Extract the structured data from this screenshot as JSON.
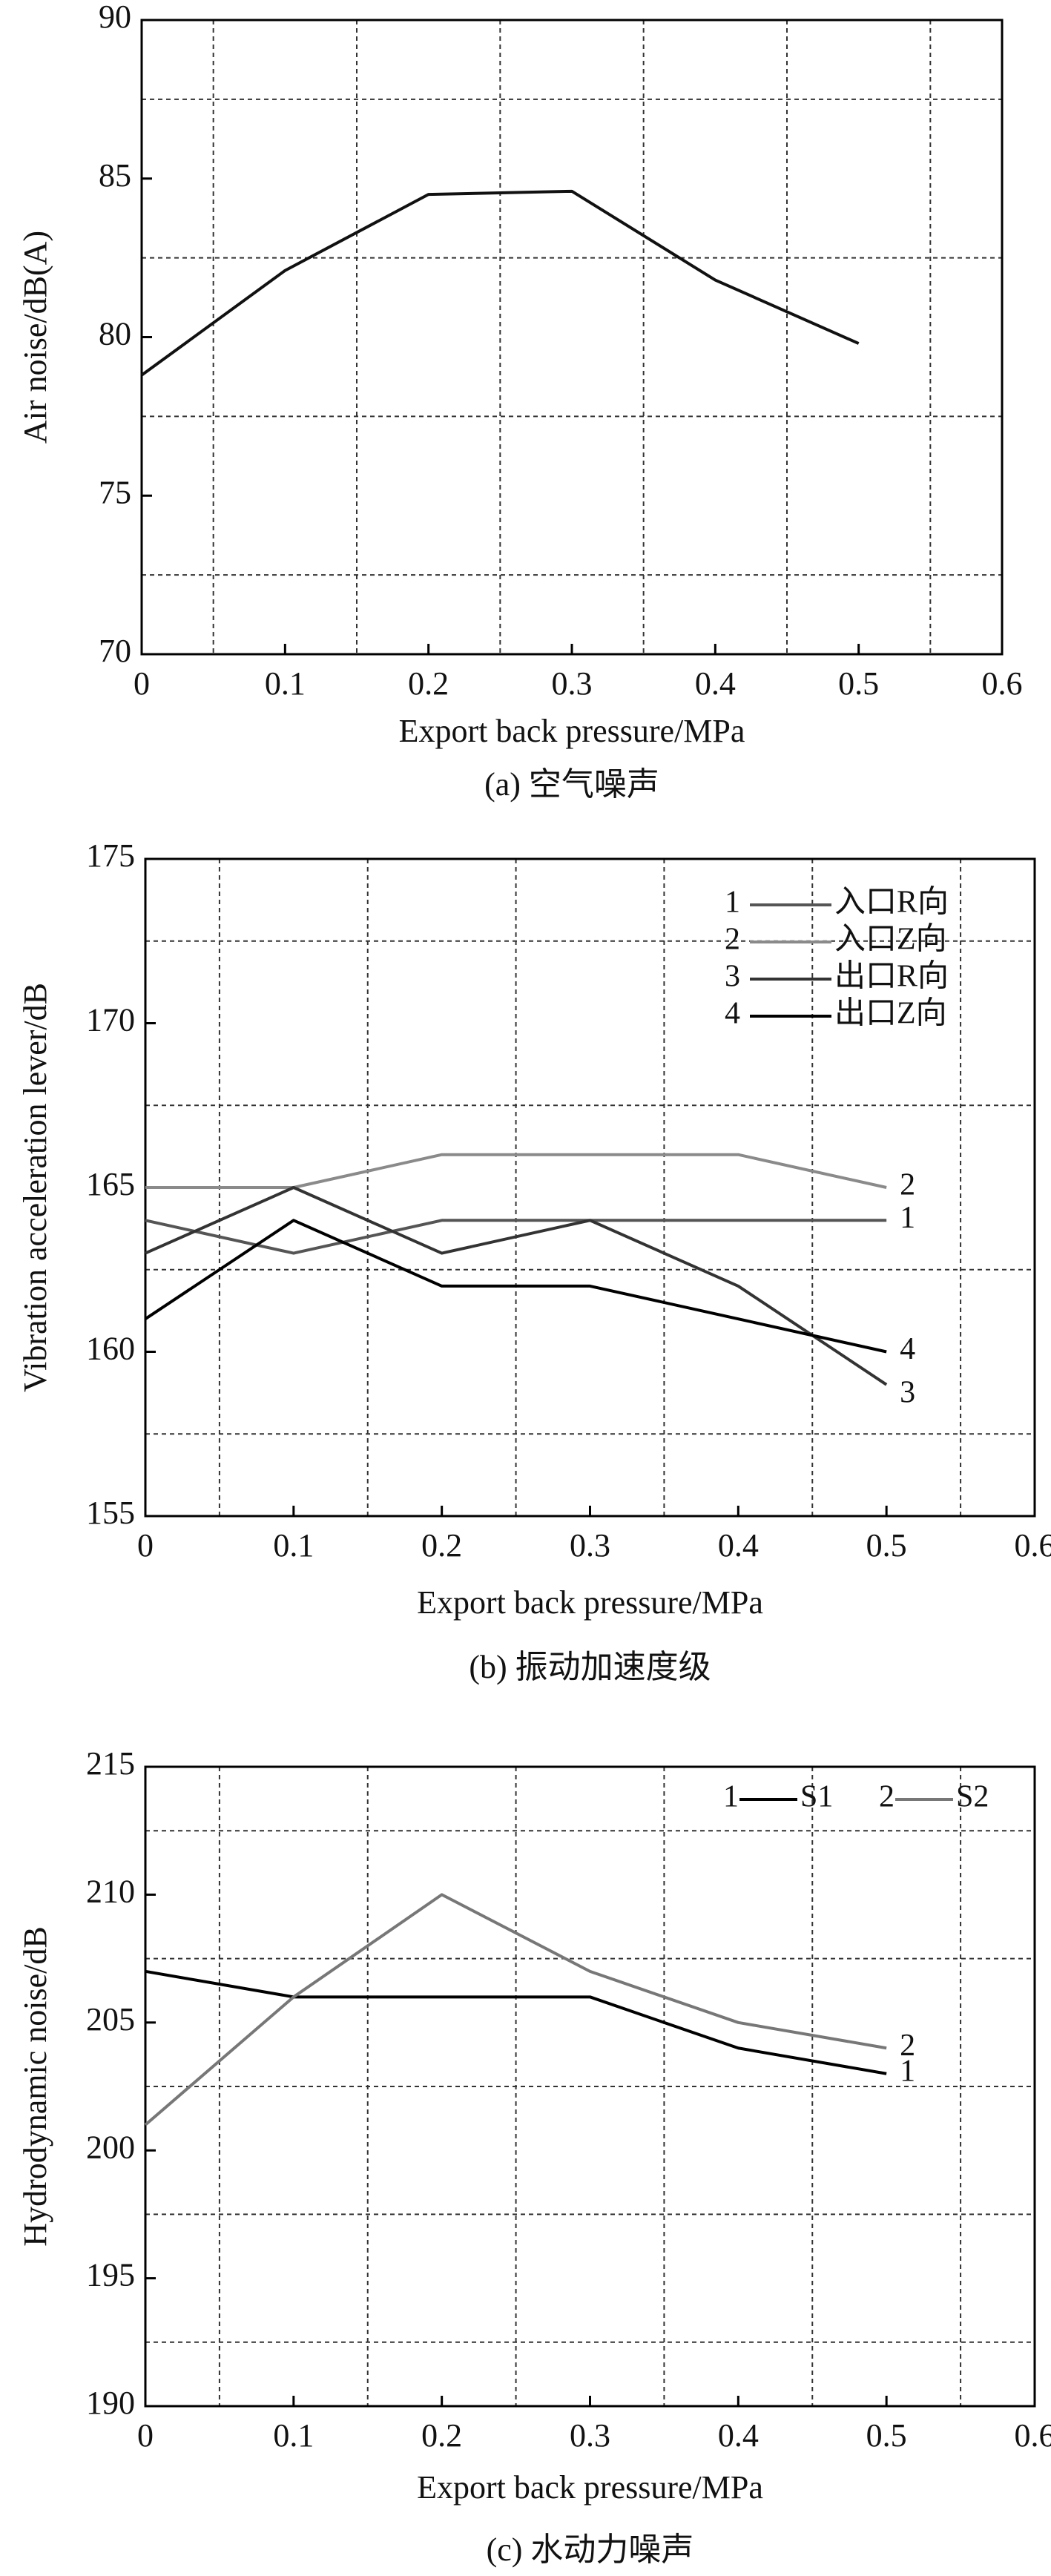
{
  "chart_data": [
    {
      "type": "line",
      "caption": "(a) 空气噪声",
      "xlabel": "Export back pressure/MPa",
      "ylabel": "Air noise/dB(A)",
      "x": [
        0,
        0.1,
        0.2,
        0.3,
        0.4,
        0.5
      ],
      "series": [
        {
          "color": "#111111",
          "values": [
            78.8,
            82.1,
            84.5,
            84.6,
            81.8,
            79.8
          ]
        }
      ],
      "xlim": [
        0,
        0.6
      ],
      "xticks": [
        0,
        0.1,
        0.2,
        0.3,
        0.4,
        0.5,
        0.6
      ],
      "ylim": [
        70,
        90
      ],
      "yticks": [
        70,
        75,
        80,
        85,
        90
      ],
      "grid": true,
      "xgrid": [
        0.05,
        0.15,
        0.25,
        0.35,
        0.45,
        0.55
      ],
      "ygrid": [
        72.5,
        77.5,
        82.5,
        87.5
      ]
    },
    {
      "type": "line",
      "caption": "(b) 振动加速度级",
      "xlabel": "Export back pressure/MPa",
      "ylabel": "Vibration acceleration lever/dB",
      "x": [
        0,
        0.1,
        0.2,
        0.3,
        0.4,
        0.5
      ],
      "series": [
        {
          "name": "入口R向",
          "label": "1",
          "color": "#555555",
          "values": [
            164,
            163,
            164,
            164,
            164,
            164
          ]
        },
        {
          "name": "入口Z向",
          "label": "2",
          "color": "#8a8a8a",
          "values": [
            165,
            165,
            166,
            166,
            166,
            165
          ]
        },
        {
          "name": "出口R向",
          "label": "3",
          "color": "#333333",
          "values": [
            163,
            165,
            163,
            164,
            162,
            159
          ]
        },
        {
          "name": "出口Z向",
          "label": "4",
          "color": "#000000",
          "values": [
            161,
            164,
            162,
            162,
            161,
            160
          ]
        }
      ],
      "xlim": [
        0,
        0.6
      ],
      "xticks": [
        0,
        0.1,
        0.2,
        0.3,
        0.4,
        0.5,
        0.6
      ],
      "ylim": [
        155,
        175
      ],
      "yticks": [
        155,
        160,
        165,
        170,
        175
      ],
      "grid": true,
      "xgrid": [
        0.05,
        0.15,
        0.25,
        0.35,
        0.45,
        0.55
      ],
      "ygrid": [
        157.5,
        162.5,
        167.5,
        172.5
      ],
      "legend": "upper right"
    },
    {
      "type": "line",
      "caption": "(c) 水动力噪声",
      "xlabel": "Export back pressure/MPa",
      "ylabel": "Hydrodynamic noise/dB",
      "x": [
        0,
        0.1,
        0.2,
        0.3,
        0.4,
        0.5
      ],
      "series": [
        {
          "name": "S1",
          "label": "1",
          "color": "#000000",
          "values": [
            207,
            206,
            206,
            206,
            204,
            203
          ]
        },
        {
          "name": "S2",
          "label": "2",
          "color": "#777777",
          "values": [
            201,
            206,
            210,
            207,
            205,
            204
          ]
        }
      ],
      "xlim": [
        0,
        0.6
      ],
      "xticks": [
        0,
        0.1,
        0.2,
        0.3,
        0.4,
        0.5,
        0.6
      ],
      "ylim": [
        190,
        215
      ],
      "yticks": [
        190,
        195,
        200,
        205,
        210,
        215
      ],
      "grid": true,
      "xgrid": [
        0.05,
        0.15,
        0.25,
        0.35,
        0.45,
        0.55
      ],
      "ygrid": [
        192.5,
        197.5,
        202.5,
        207.5,
        212.5
      ],
      "legend": "upper right"
    }
  ]
}
